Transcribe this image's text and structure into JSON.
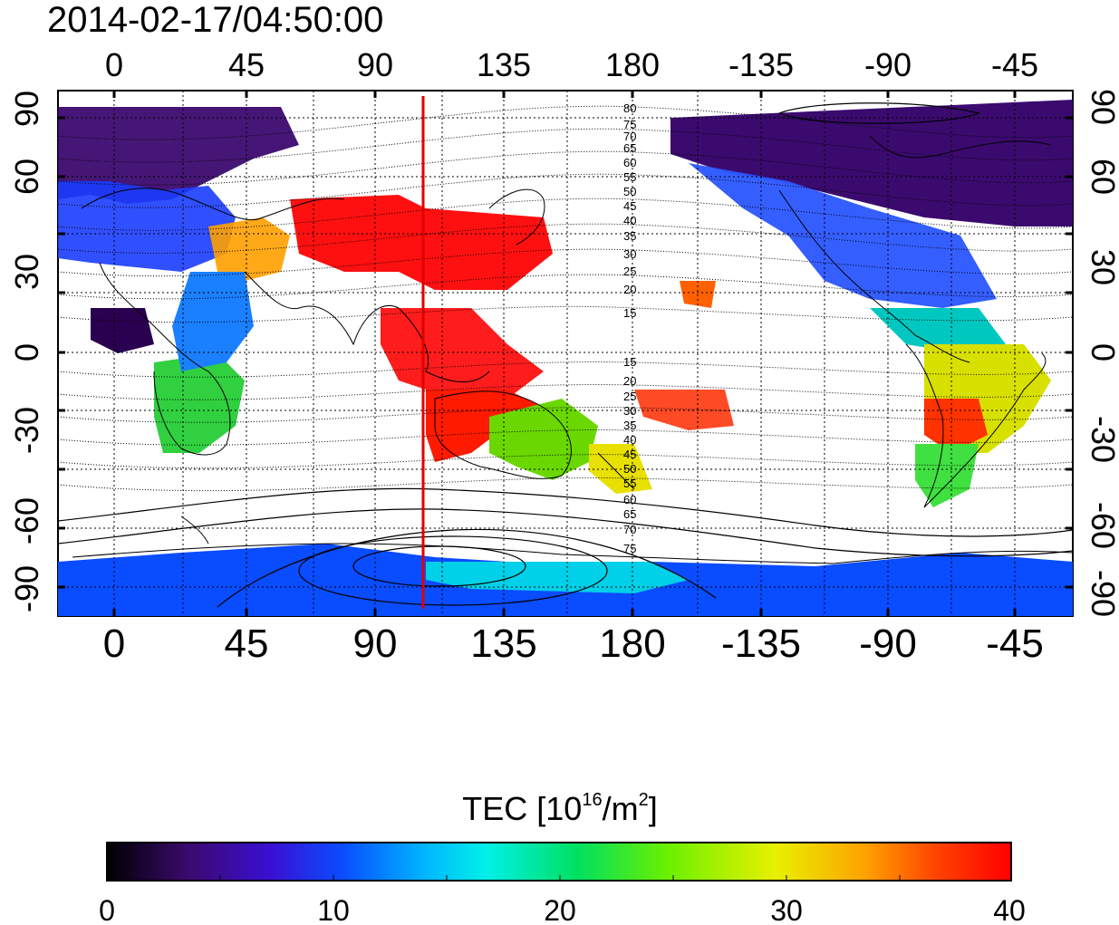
{
  "title": "2014-02-17/04:50:00",
  "map": {
    "lon_ticks_top": [
      "0",
      "45",
      "90",
      "135",
      "180",
      "-135",
      "-90",
      "-45"
    ],
    "lon_ticks_bottom": [
      "0",
      "45",
      "90",
      "135",
      "180",
      "-135",
      "-90",
      "-45"
    ],
    "lat_ticks_left": [
      "90",
      "60",
      "30",
      "0",
      "-30",
      "-60",
      "-90"
    ],
    "lat_ticks_right": [
      "90",
      "60",
      "30",
      "0",
      "-30",
      "-60",
      "-90"
    ],
    "contour_labels_north": [
      "80",
      "75",
      "70",
      "65",
      "60",
      "55",
      "50",
      "45",
      "40",
      "35",
      "30",
      "25",
      "20",
      "15"
    ],
    "contour_labels_south": [
      "15",
      "20",
      "25",
      "30",
      "35",
      "40",
      "45",
      "50",
      "55",
      "60",
      "65",
      "70",
      "75"
    ],
    "red_line_lon": 108
  },
  "colorbar": {
    "label_main": "TEC  [10",
    "label_sup1": "16",
    "label_mid": "/m",
    "label_sup2": "2",
    "label_end": "]",
    "ticks": [
      "0",
      "10",
      "20",
      "30",
      "40"
    ],
    "colors": [
      "#000000",
      "#3b0a6e",
      "#3a0fd2",
      "#0a4cff",
      "#00b4ff",
      "#00f0e8",
      "#00e060",
      "#6af000",
      "#e8f000",
      "#ffa000",
      "#ff4000",
      "#ff0000"
    ]
  }
}
